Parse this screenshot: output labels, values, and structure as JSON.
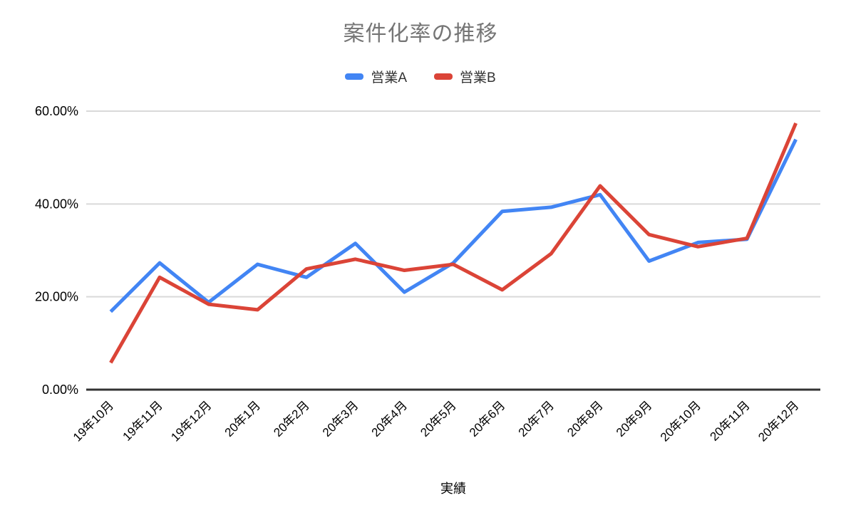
{
  "chart_data": {
    "type": "line",
    "title": "案件化率の推移",
    "xlabel": "実績",
    "ylabel": "",
    "legend_position": "top",
    "grid": true,
    "categories": [
      "19年10月",
      "19年11月",
      "19年12月",
      "20年1月",
      "20年2月",
      "20年3月",
      "20年4月",
      "20年5月",
      "20年6月",
      "20年7月",
      "20年8月",
      "20年9月",
      "20年10月",
      "20年11月",
      "20年12月"
    ],
    "series": [
      {
        "name": "営業A",
        "color": "#4285f4",
        "values": [
          16.8,
          27.3,
          18.8,
          27.0,
          24.2,
          31.5,
          21.0,
          27.3,
          38.4,
          39.3,
          42.0,
          27.7,
          31.7,
          32.4,
          53.9
        ]
      },
      {
        "name": "営業B",
        "color": "#db4437",
        "values": [
          5.8,
          24.2,
          18.4,
          17.2,
          26.0,
          28.1,
          25.7,
          27.0,
          21.5,
          29.3,
          43.9,
          33.4,
          30.8,
          32.6,
          57.4
        ]
      }
    ],
    "y_axis": {
      "min": 0,
      "max": 60,
      "ticks": [
        {
          "value": 0,
          "label": "0.00%"
        },
        {
          "value": 20,
          "label": "20.00%"
        },
        {
          "value": 40,
          "label": "40.00%"
        },
        {
          "value": 60,
          "label": "60.00%"
        }
      ]
    },
    "colors": {
      "grid": "#d9d9d9",
      "axis": "#333333",
      "tick_text": "#000000",
      "title_text": "#757575"
    }
  }
}
